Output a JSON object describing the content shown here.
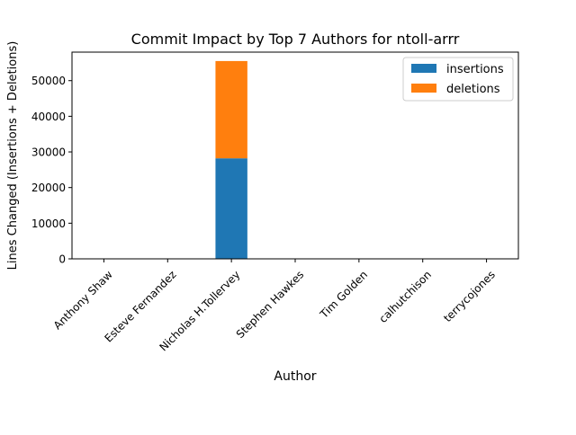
{
  "chart_data": {
    "type": "bar",
    "stacked": true,
    "title": "Commit Impact by Top 7 Authors for ntoll-arrr",
    "xlabel": "Author",
    "ylabel": "Lines Changed (Insertions + Deletions)",
    "ylim": [
      0,
      58000
    ],
    "yticks": [
      0,
      10000,
      20000,
      30000,
      40000,
      50000
    ],
    "categories": [
      "Anthony Shaw",
      "Esteve Fernandez",
      "Nicholas H.Tollervey",
      "Stephen Hawkes",
      "Tim Golden",
      "calhutchison",
      "terrycojones"
    ],
    "series": [
      {
        "name": "insertions",
        "color": "#1f77b4",
        "values": [
          30,
          10,
          28200,
          5,
          5,
          5,
          5
        ]
      },
      {
        "name": "deletions",
        "color": "#ff7f0e",
        "values": [
          10,
          5,
          27300,
          2,
          2,
          2,
          2
        ]
      }
    ],
    "legend": "top-right",
    "grid": false
  }
}
